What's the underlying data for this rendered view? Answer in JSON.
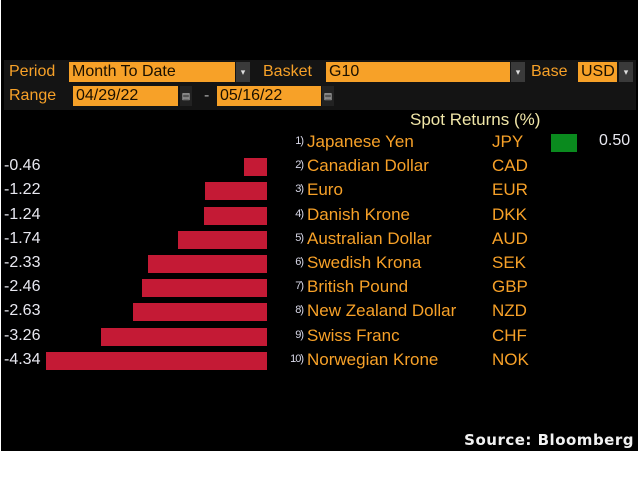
{
  "controls": {
    "period_label": "Period",
    "period_value": "Month To Date",
    "basket_label": "Basket",
    "basket_value": "G10",
    "base_label": "Base",
    "base_value": "USD",
    "range_label": "Range",
    "range_start": "04/29/22",
    "range_sep": "-",
    "range_end": "05/16/22",
    "dropdown_glyph": "▾",
    "calendar_glyph": "▤"
  },
  "source": "Source: Bloomberg",
  "colors": {
    "negative": "#c41a35",
    "positive": "#0a8a1e",
    "accent": "#f7a128"
  },
  "chart_data": {
    "type": "bar",
    "orientation": "horizontal",
    "title": "Spot Returns (%)",
    "ranks": [
      "1)",
      "2)",
      "3)",
      "4)",
      "5)",
      "6)",
      "7)",
      "8)",
      "9)",
      "10)"
    ],
    "categories": [
      "Japanese Yen",
      "Canadian Dollar",
      "Euro",
      "Danish Krone",
      "Australian Dollar",
      "Swedish Krona",
      "British Pound",
      "New Zealand Dollar",
      "Swiss Franc",
      "Norwegian Krone"
    ],
    "codes": [
      "JPY",
      "CAD",
      "EUR",
      "DKK",
      "AUD",
      "SEK",
      "GBP",
      "NZD",
      "CHF",
      "NOK"
    ],
    "values": [
      0.5,
      -0.46,
      -1.22,
      -1.24,
      -1.74,
      -2.33,
      -2.46,
      -2.63,
      -3.26,
      -4.34
    ],
    "labels": [
      "0.50",
      "-0.46",
      "-1.22",
      "-1.24",
      "-1.74",
      "-2.33",
      "-2.46",
      "-2.63",
      "-3.26",
      "-4.34"
    ]
  }
}
